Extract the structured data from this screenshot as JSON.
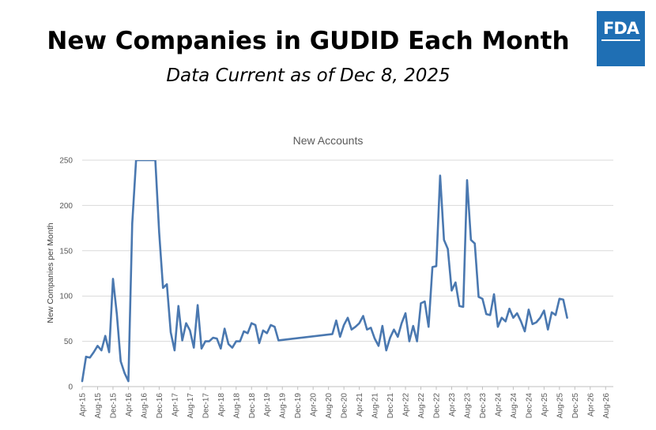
{
  "header": {
    "title": "New Companies in GUDID Each Month",
    "subtitle": "Data Current as of Dec 8, 2025",
    "logo_text": "FDA",
    "logo_color": "#1f6fb4"
  },
  "chart_data": {
    "type": "line",
    "title": "New Accounts",
    "xlabel": "",
    "ylabel": "New Companies per Month",
    "ylim": [
      0,
      250
    ],
    "yticks": [
      0,
      50,
      100,
      150,
      200,
      250
    ],
    "x_axis_start": "Apr-15",
    "x_axis_end": "Oct-26",
    "xtick_labels": [
      "Apr-15",
      "Aug-15",
      "Dec-15",
      "Apr-16",
      "Aug-16",
      "Dec-16",
      "Apr-17",
      "Aug-17",
      "Dec-17",
      "Apr-18",
      "Aug-18",
      "Dec-18",
      "Apr-19",
      "Aug-19",
      "Dec-19",
      "Apr-20",
      "Aug-20",
      "Dec-20",
      "Apr-21",
      "Aug-21",
      "Dec-21",
      "Apr-22",
      "Aug-22",
      "Dec-22",
      "Apr-23",
      "Aug-23",
      "Dec-23",
      "Apr-24",
      "Aug-24",
      "Dec-24",
      "Apr-25",
      "Aug-25",
      "Dec-25",
      "Apr-26",
      "Aug-26"
    ],
    "grid": true,
    "line_color": "#4a78b0",
    "series": [
      {
        "name": "New Accounts",
        "points": [
          [
            "Apr-15",
            6
          ],
          [
            "May-15",
            33
          ],
          [
            "Jun-15",
            32
          ],
          [
            "Jul-15",
            38
          ],
          [
            "Aug-15",
            45
          ],
          [
            "Sep-15",
            40
          ],
          [
            "Oct-15",
            56
          ],
          [
            "Nov-15",
            38
          ],
          [
            "Dec-15",
            119
          ],
          [
            "Jan-16",
            80
          ],
          [
            "Feb-16",
            28
          ],
          [
            "Mar-16",
            15
          ],
          [
            "Apr-16",
            6
          ],
          [
            "May-16",
            180
          ],
          [
            "Jun-16",
            250
          ],
          [
            "Nov-16",
            250
          ],
          [
            "Dec-16",
            170
          ],
          [
            "Jan-17",
            109
          ],
          [
            "Feb-17",
            113
          ],
          [
            "Mar-17",
            60
          ],
          [
            "Apr-17",
            40
          ],
          [
            "May-17",
            89
          ],
          [
            "Jun-17",
            51
          ],
          [
            "Jul-17",
            70
          ],
          [
            "Aug-17",
            62
          ],
          [
            "Sep-17",
            43
          ],
          [
            "Oct-17",
            90
          ],
          [
            "Nov-17",
            42
          ],
          [
            "Dec-17",
            50
          ],
          [
            "Jan-18",
            50
          ],
          [
            "Feb-18",
            54
          ],
          [
            "Mar-18",
            53
          ],
          [
            "Apr-18",
            42
          ],
          [
            "May-18",
            64
          ],
          [
            "Jun-18",
            47
          ],
          [
            "Jul-18",
            43
          ],
          [
            "Aug-18",
            50
          ],
          [
            "Sep-18",
            50
          ],
          [
            "Oct-18",
            61
          ],
          [
            "Nov-18",
            59
          ],
          [
            "Dec-18",
            70
          ],
          [
            "Jan-19",
            68
          ],
          [
            "Feb-19",
            48
          ],
          [
            "Mar-19",
            62
          ],
          [
            "Apr-19",
            59
          ],
          [
            "May-19",
            68
          ],
          [
            "Jun-19",
            66
          ],
          [
            "Jul-19",
            51
          ],
          [
            "Sep-20",
            58
          ],
          [
            "Oct-20",
            73
          ],
          [
            "Nov-20",
            55
          ],
          [
            "Dec-20",
            68
          ],
          [
            "Jan-21",
            76
          ],
          [
            "Feb-21",
            63
          ],
          [
            "Mar-21",
            66
          ],
          [
            "Apr-21",
            70
          ],
          [
            "May-21",
            78
          ],
          [
            "Jun-21",
            63
          ],
          [
            "Jul-21",
            65
          ],
          [
            "Aug-21",
            53
          ],
          [
            "Sep-21",
            45
          ],
          [
            "Oct-21",
            67
          ],
          [
            "Nov-21",
            40
          ],
          [
            "Dec-21",
            54
          ],
          [
            "Jan-22",
            63
          ],
          [
            "Feb-22",
            55
          ],
          [
            "Mar-22",
            70
          ],
          [
            "Apr-22",
            81
          ],
          [
            "May-22",
            50
          ],
          [
            "Jun-22",
            67
          ],
          [
            "Jul-22",
            50
          ],
          [
            "Aug-22",
            92
          ],
          [
            "Sep-22",
            94
          ],
          [
            "Oct-22",
            66
          ],
          [
            "Nov-22",
            132
          ],
          [
            "Dec-22",
            133
          ],
          [
            "Jan-23",
            233
          ],
          [
            "Feb-23",
            162
          ],
          [
            "Mar-23",
            152
          ],
          [
            "Apr-23",
            106
          ],
          [
            "May-23",
            115
          ],
          [
            "Jun-23",
            89
          ],
          [
            "Jul-23",
            88
          ],
          [
            "Aug-23",
            228
          ],
          [
            "Sep-23",
            162
          ],
          [
            "Oct-23",
            158
          ],
          [
            "Nov-23",
            99
          ],
          [
            "Dec-23",
            97
          ],
          [
            "Jan-24",
            80
          ],
          [
            "Feb-24",
            79
          ],
          [
            "Mar-24",
            102
          ],
          [
            "Apr-24",
            66
          ],
          [
            "May-24",
            76
          ],
          [
            "Jun-24",
            72
          ],
          [
            "Jul-24",
            86
          ],
          [
            "Aug-24",
            76
          ],
          [
            "Sep-24",
            81
          ],
          [
            "Oct-24",
            72
          ],
          [
            "Nov-24",
            61
          ],
          [
            "Dec-24",
            85
          ],
          [
            "Jan-25",
            69
          ],
          [
            "Feb-25",
            71
          ],
          [
            "Mar-25",
            76
          ],
          [
            "Apr-25",
            84
          ],
          [
            "May-25",
            63
          ],
          [
            "Jun-25",
            82
          ],
          [
            "Jul-25",
            79
          ],
          [
            "Aug-25",
            97
          ],
          [
            "Sep-25",
            96
          ],
          [
            "Oct-25",
            76
          ]
        ]
      }
    ]
  }
}
